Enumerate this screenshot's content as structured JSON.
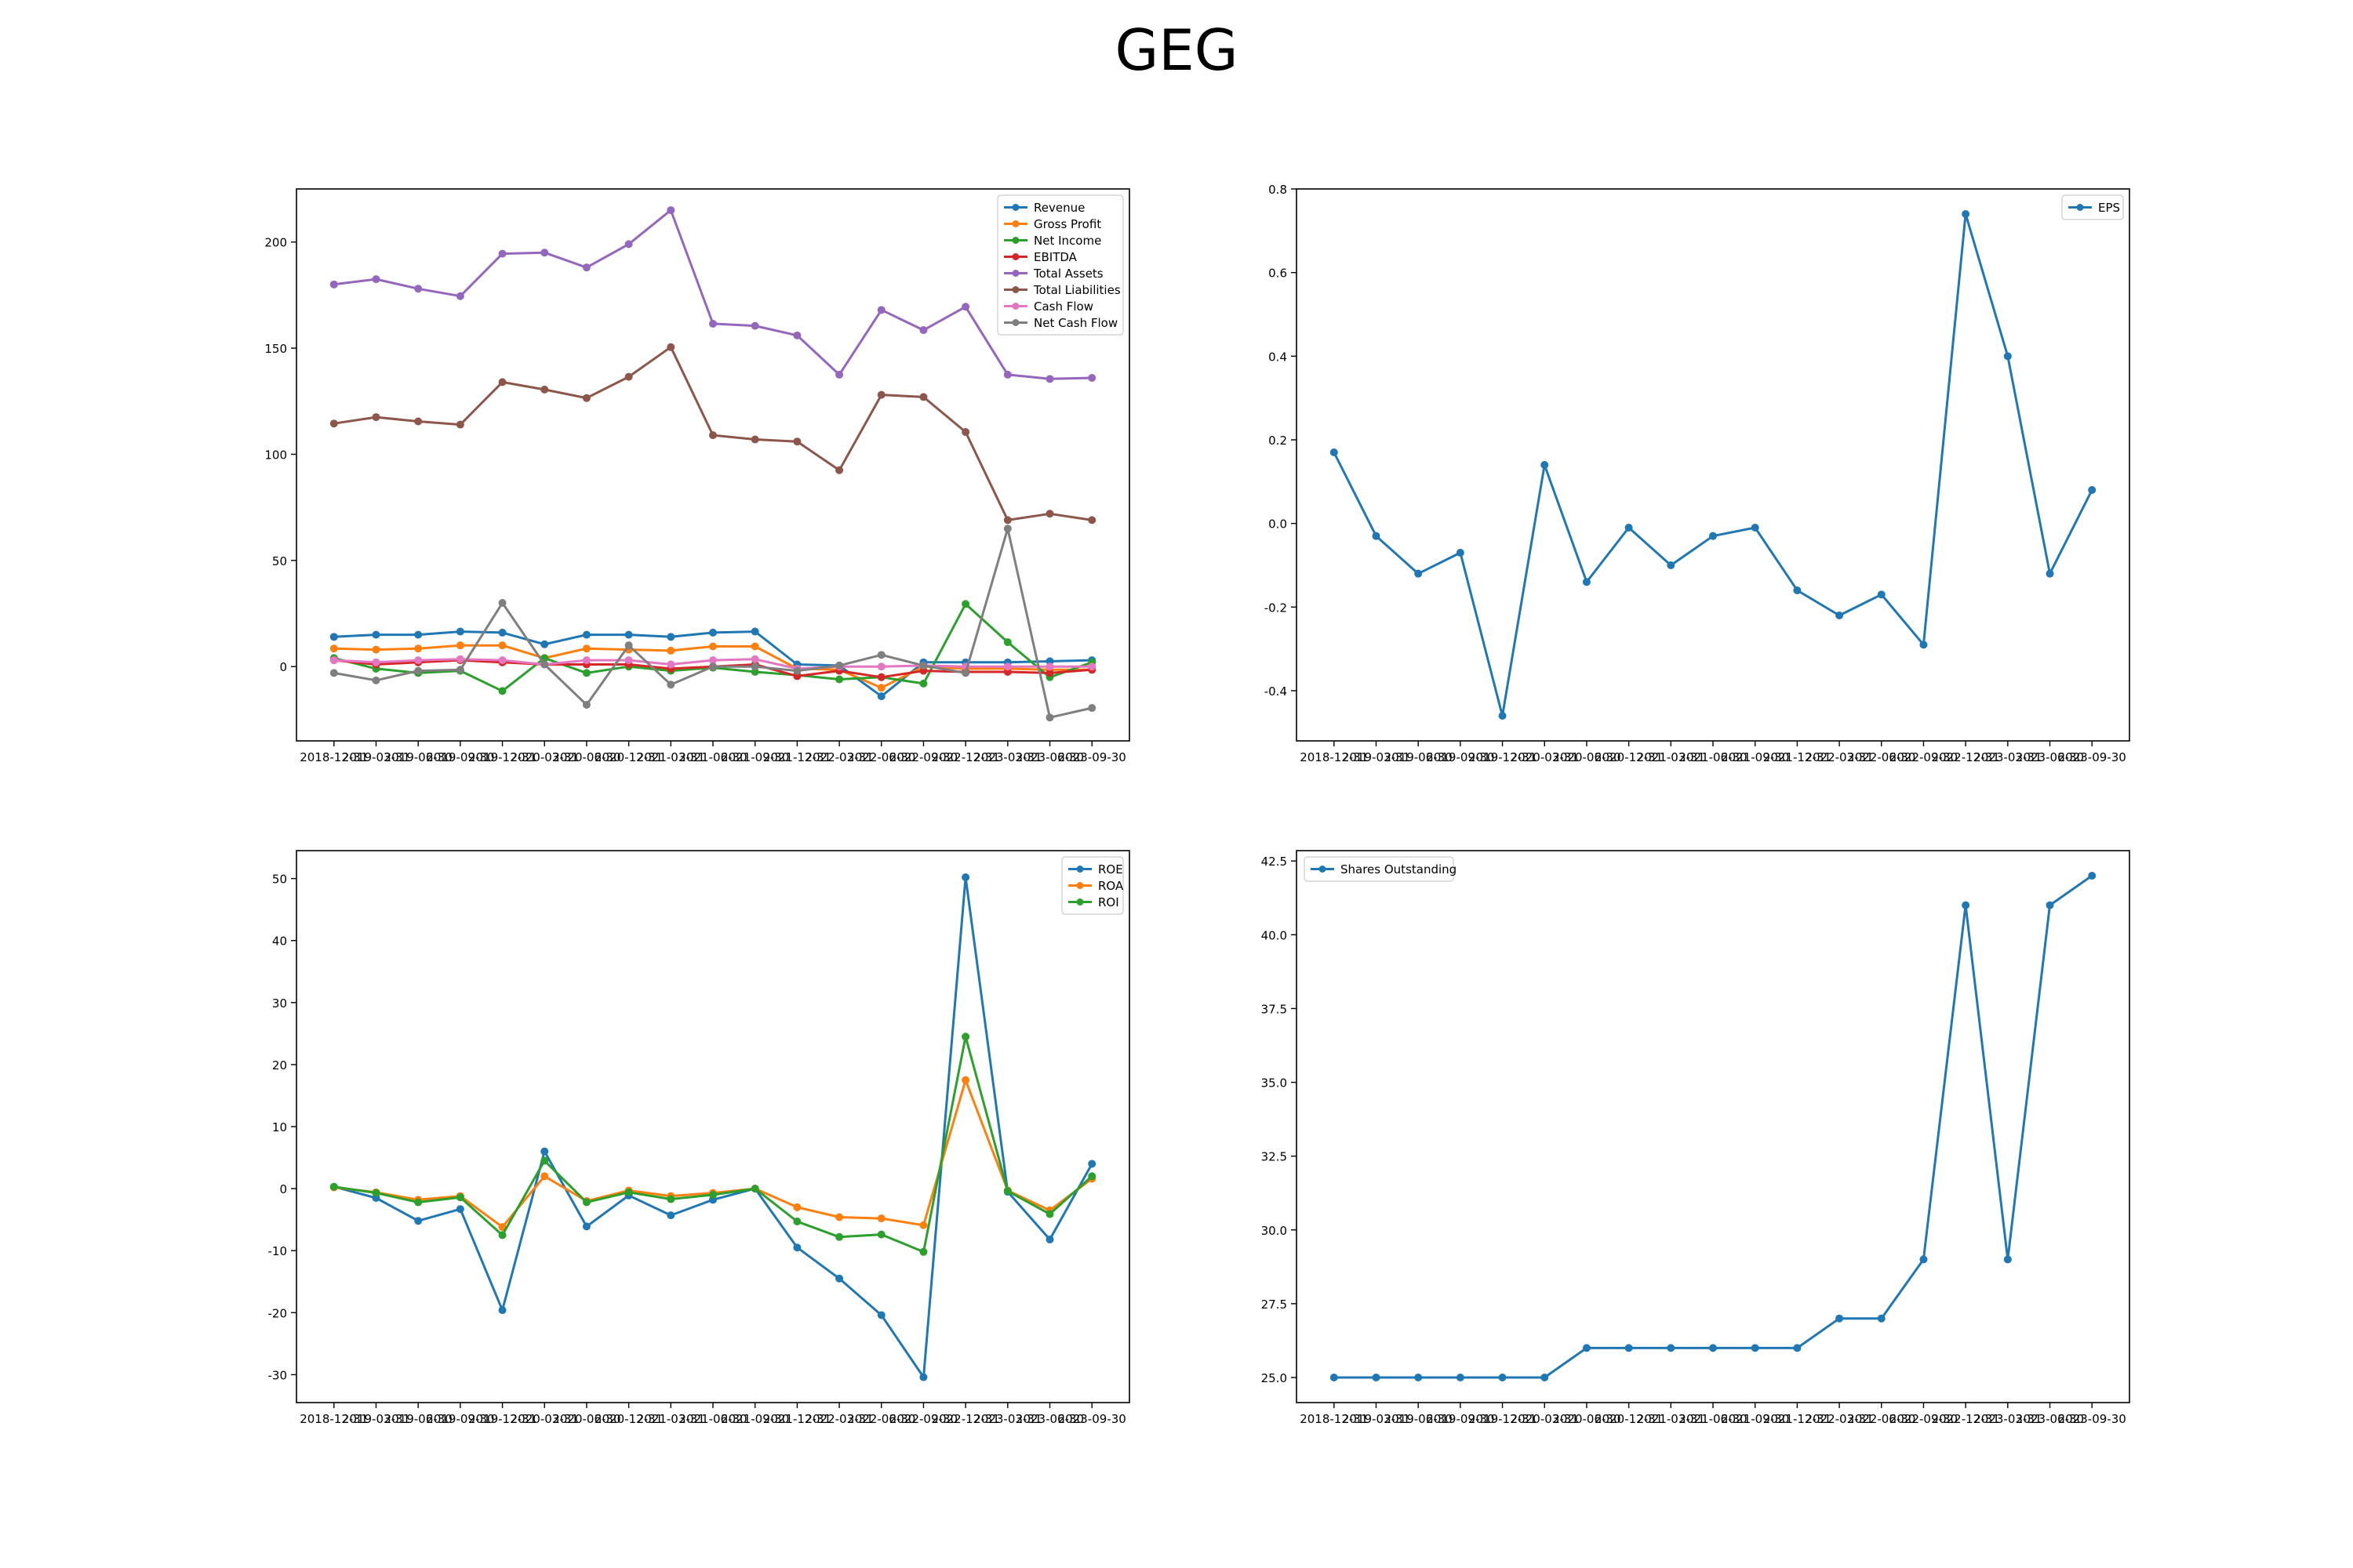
{
  "title": "GEG",
  "colors": {
    "blue": "#1f77b4",
    "orange": "#ff7f0e",
    "green": "#2ca02c",
    "red": "#d62728",
    "purple": "#9467bd",
    "brown": "#8c564b",
    "pink": "#e377c2",
    "gray": "#7f7f7f"
  },
  "chart_data": [
    {
      "type": "line",
      "title": "",
      "xlabel": "",
      "ylabel": "",
      "x": [
        "2018-12-31",
        "2019-03-31",
        "2019-06-30",
        "2019-09-30",
        "2019-12-31",
        "2020-03-31",
        "2020-06-30",
        "2020-12-31",
        "2021-03-31",
        "2021-06-30",
        "2021-09-30",
        "2021-12-31",
        "2022-03-31",
        "2022-06-30",
        "2022-09-30",
        "2022-12-31",
        "2023-03-31",
        "2023-06-30",
        "2023-09-30"
      ],
      "ylim": [
        -35,
        225
      ],
      "yticks": [
        0,
        50,
        100,
        150,
        200
      ],
      "legend": "top-right",
      "series": [
        {
          "name": "Revenue",
          "color": "#1f77b4",
          "values": [
            14,
            15,
            15,
            16.5,
            16,
            10.5,
            15,
            15,
            14,
            16,
            16.5,
            1,
            0.5,
            -14,
            2,
            2,
            2,
            2.5,
            3
          ]
        },
        {
          "name": "Gross Profit",
          "color": "#ff7f0e",
          "values": [
            8.5,
            8,
            8.5,
            10,
            10,
            4,
            8.5,
            8,
            7.5,
            9.5,
            9.5,
            -1,
            -1.5,
            -10,
            0,
            -1,
            -1,
            -1.5,
            -1.5
          ]
        },
        {
          "name": "Net Income",
          "color": "#2ca02c",
          "values": [
            4,
            -1,
            -3,
            -2,
            -11.5,
            4,
            -3,
            0,
            -2,
            -0.5,
            -2.5,
            -4,
            -6,
            -5,
            -8,
            29.5,
            11.5,
            -5,
            2
          ]
        },
        {
          "name": "EBITDA",
          "color": "#d62728",
          "values": [
            3,
            1,
            2,
            3,
            2,
            1,
            1,
            1,
            -1,
            0,
            1,
            -4.5,
            -2,
            -5,
            -2,
            -2.5,
            -2.5,
            -3,
            -1.5
          ]
        },
        {
          "name": "Total Assets",
          "color": "#9467bd",
          "values": [
            180,
            182.5,
            178,
            174.5,
            194.5,
            195,
            188,
            199,
            215,
            161.5,
            160.5,
            156,
            137.5,
            168,
            158.5,
            169.5,
            137.5,
            135.5,
            136
          ]
        },
        {
          "name": "Total Liabilities",
          "color": "#8c564b",
          "values": [
            114.5,
            117.5,
            115.5,
            114,
            134,
            130.5,
            126.5,
            136.5,
            150.5,
            109,
            107,
            106,
            92.5,
            128,
            127,
            110.5,
            69,
            72,
            69
          ]
        },
        {
          "name": "Cash Flow",
          "color": "#e377c2",
          "values": [
            3,
            2,
            3,
            3.5,
            3,
            1,
            3,
            3,
            1,
            3,
            3.5,
            -1,
            0,
            0,
            0.5,
            0,
            0,
            0,
            0
          ]
        },
        {
          "name": "Net Cash Flow",
          "color": "#7f7f7f",
          "values": [
            -3,
            -6.5,
            -2,
            -1.5,
            30,
            1,
            -18,
            10,
            -8.5,
            0,
            0,
            -2,
            0.5,
            5.5,
            0.5,
            -3,
            65,
            -24,
            -19.5
          ]
        }
      ]
    },
    {
      "type": "line",
      "title": "",
      "xlabel": "",
      "ylabel": "",
      "x": [
        "2018-12-31",
        "2019-03-31",
        "2019-06-30",
        "2019-09-30",
        "2019-12-31",
        "2020-03-31",
        "2020-06-30",
        "2020-12-31",
        "2021-03-31",
        "2021-06-30",
        "2021-09-30",
        "2021-12-31",
        "2022-03-31",
        "2022-06-30",
        "2022-09-30",
        "2022-12-31",
        "2023-03-31",
        "2023-06-30",
        "2023-09-30"
      ],
      "ylim": [
        -0.52,
        0.8
      ],
      "yticks": [
        -0.4,
        -0.2,
        0.0,
        0.2,
        0.4,
        0.6,
        0.8
      ],
      "legend": "top-right",
      "series": [
        {
          "name": "EPS",
          "color": "#1f77b4",
          "values": [
            0.17,
            -0.03,
            -0.12,
            -0.07,
            -0.46,
            0.14,
            -0.14,
            -0.01,
            -0.1,
            -0.03,
            -0.01,
            -0.16,
            -0.22,
            -0.17,
            -0.29,
            0.74,
            0.4,
            -0.12,
            0.08
          ]
        }
      ]
    },
    {
      "type": "line",
      "title": "",
      "xlabel": "",
      "ylabel": "",
      "x": [
        "2018-12-31",
        "2019-03-31",
        "2019-06-30",
        "2019-09-30",
        "2019-12-31",
        "2020-03-31",
        "2020-06-30",
        "2020-12-31",
        "2021-03-31",
        "2021-06-30",
        "2021-09-30",
        "2021-12-31",
        "2022-03-31",
        "2022-06-30",
        "2022-09-30",
        "2022-12-31",
        "2023-03-31",
        "2023-06-30",
        "2023-09-30"
      ],
      "ylim": [
        -34.5,
        54.5
      ],
      "yticks": [
        -30,
        -20,
        -10,
        0,
        10,
        20,
        30,
        40,
        50
      ],
      "legend": "top-right",
      "series": [
        {
          "name": "ROE",
          "color": "#1f77b4",
          "values": [
            0.3,
            -1.5,
            -5.2,
            -3.3,
            -19.6,
            6,
            -6.1,
            -1.1,
            -4.3,
            -1.8,
            0,
            -9.5,
            -14.5,
            -20.4,
            -30.4,
            50.2,
            -0.5,
            -8.2,
            4
          ]
        },
        {
          "name": "ROA",
          "color": "#ff7f0e",
          "values": [
            0.2,
            -0.6,
            -1.8,
            -1.2,
            -6.2,
            2,
            -2,
            -0.3,
            -1.2,
            -0.7,
            0,
            -3,
            -4.6,
            -4.8,
            -5.9,
            17.5,
            -0.3,
            -3.5,
            1.6
          ]
        },
        {
          "name": "ROI",
          "color": "#2ca02c",
          "values": [
            0.3,
            -0.7,
            -2.2,
            -1.4,
            -7.5,
            4.5,
            -2.2,
            -0.6,
            -1.7,
            -1,
            0,
            -5.3,
            -7.8,
            -7.4,
            -10.2,
            24.5,
            -0.4,
            -4.1,
            2
          ]
        }
      ]
    },
    {
      "type": "line",
      "title": "",
      "xlabel": "",
      "ylabel": "",
      "x": [
        "2018-12-31",
        "2019-03-31",
        "2019-06-30",
        "2019-09-30",
        "2019-12-31",
        "2020-03-31",
        "2020-06-30",
        "2020-12-31",
        "2021-03-31",
        "2021-06-30",
        "2021-09-30",
        "2021-12-31",
        "2022-03-31",
        "2022-06-30",
        "2022-09-30",
        "2022-12-31",
        "2023-03-31",
        "2023-06-30",
        "2023-09-30"
      ],
      "ylim": [
        24.15,
        42.85
      ],
      "yticks": [
        25.0,
        27.5,
        30.0,
        32.5,
        35.0,
        37.5,
        40.0,
        42.5
      ],
      "legend": "top-left",
      "series": [
        {
          "name": "Shares Outstanding",
          "color": "#1f77b4",
          "values": [
            25,
            25,
            25,
            25,
            25,
            25,
            26,
            26,
            26,
            26,
            26,
            26,
            27,
            27,
            29,
            41,
            29,
            41,
            42
          ]
        }
      ]
    }
  ]
}
